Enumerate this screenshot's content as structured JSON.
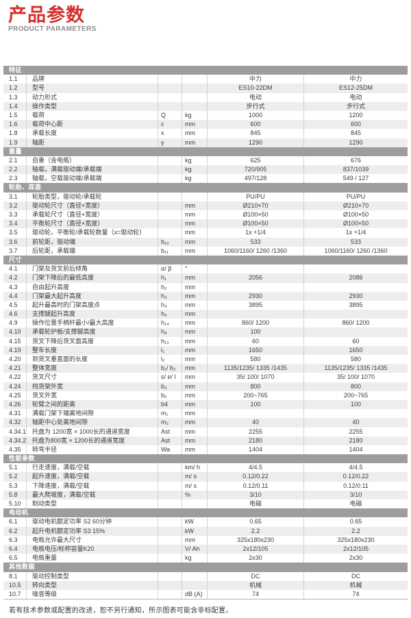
{
  "header": {
    "title_zh": "产品参数",
    "title_en": "PRODUCT PARAMETERS",
    "accent_color": "#d2302c"
  },
  "table": {
    "sections": [
      {
        "title": "特征",
        "rows": [
          {
            "idx": "1.1",
            "name": "品牌",
            "sym": "",
            "unit": "",
            "v1": "中力",
            "v2": "中力"
          },
          {
            "idx": "1.2",
            "name": "型号",
            "sym": "",
            "unit": "",
            "v1": "ES10-22DM",
            "v2": "ES12-25DM"
          },
          {
            "idx": "1.3",
            "name": "动力形式",
            "sym": "",
            "unit": "",
            "v1": "电动",
            "v2": "电动"
          },
          {
            "idx": "1.4",
            "name": "操作类型",
            "sym": "",
            "unit": "",
            "v1": "步行式",
            "v2": "步行式"
          },
          {
            "idx": "1.5",
            "name": "载荷",
            "sym": "Q",
            "unit": "kg",
            "v1": "1000",
            "v2": "1200"
          },
          {
            "idx": "1.6",
            "name": "载荷中心距",
            "sym": "c",
            "unit": "mm",
            "v1": "600",
            "v2": "600"
          },
          {
            "idx": "1.8",
            "name": "承载长度",
            "sym": "x",
            "unit": "mm",
            "v1": "845",
            "v2": "845"
          },
          {
            "idx": "1.9",
            "name": "轴距",
            "sym": "y",
            "unit": "mm",
            "v1": "1290",
            "v2": "1290"
          }
        ]
      },
      {
        "title": "重量",
        "rows": [
          {
            "idx": "2.1",
            "name": "自重（含电瓶）",
            "sym": "",
            "unit": "kg",
            "v1": "625",
            "v2": "676"
          },
          {
            "idx": "2.2",
            "name": "轴载，满载驱动端/承载端",
            "sym": "",
            "unit": "kg",
            "v1": "720/905",
            "v2": "837/1039"
          },
          {
            "idx": "2.3",
            "name": "轴载，空载驱动端/承载端",
            "sym": "",
            "unit": "kg",
            "v1": "497/128",
            "v2": "549 / 127"
          }
        ]
      },
      {
        "title": "轮胎、底盘",
        "rows": [
          {
            "idx": "3.1",
            "name": "轮胎类型，驱动轮/承载轮",
            "sym": "",
            "unit": "",
            "v1": "PU/PU",
            "v2": "PU/PU"
          },
          {
            "idx": "3.2",
            "name": "驱动轮尺寸（直径×宽度）",
            "sym": "",
            "unit": "mm",
            "v1": "Ø210×70",
            "v2": "Ø210×70"
          },
          {
            "idx": "3.3",
            "name": "承载轮尺寸（直径×宽度）",
            "sym": "",
            "unit": "mm",
            "v1": "Ø100×50",
            "v2": "Ø100×50"
          },
          {
            "idx": "3.4",
            "name": "平衡轮尺寸（直径×宽度）",
            "sym": "",
            "unit": "mm",
            "v1": "Ø100×50",
            "v2": "Ø100×50"
          },
          {
            "idx": "3.5",
            "name": "驱动轮，平衡轮/承载轮数量（x=驱动轮）",
            "sym": "",
            "unit": "mm",
            "v1": "1x +1/4",
            "v2": "1x +1/4"
          },
          {
            "idx": "3.6",
            "name": "前轮距，驱动端",
            "sym": "b₁₀",
            "unit": "mm",
            "v1": "533",
            "v2": "533"
          },
          {
            "idx": "3.7",
            "name": "后轮距，承载端",
            "sym": "b₁₁",
            "unit": "mm",
            "v1": "1060/1160/ 1260 /1360",
            "v2": "1060/1160/ 1260 /1360"
          }
        ]
      },
      {
        "title": "尺寸",
        "rows": [
          {
            "idx": "4.1",
            "name": "门架及货叉前后倾角",
            "sym": "α/ β",
            "unit": "°",
            "v1": "",
            "v2": ""
          },
          {
            "idx": "4.2",
            "name": "门架下降后的最低高度",
            "sym": "h₁",
            "unit": "mm",
            "v1": "2056",
            "v2": "2086"
          },
          {
            "idx": "4.3",
            "name": "自由起升高度",
            "sym": "h₂",
            "unit": "mm",
            "v1": "",
            "v2": ""
          },
          {
            "idx": "4.4",
            "name": "门架最大起升高度",
            "sym": "h₃",
            "unit": "mm",
            "v1": "2930",
            "v2": "2930"
          },
          {
            "idx": "4.5",
            "name": "起升最高时的门架高度点",
            "sym": "h₄",
            "unit": "mm",
            "v1": "3895",
            "v2": "3895"
          },
          {
            "idx": "4.6",
            "name": "支撑腿起升高度",
            "sym": "h₅",
            "unit": "mm",
            "v1": "",
            "v2": ""
          },
          {
            "idx": "4.9",
            "name": "操作位置手柄杆最小/最大高度",
            "sym": "h₁₄",
            "unit": "mm",
            "v1": "860/ 1200",
            "v2": "860/ 1200"
          },
          {
            "idx": "4.10",
            "name": "承载轮护板/支撑腿高度",
            "sym": "h₈",
            "unit": "mm",
            "v1": "100",
            "v2": ""
          },
          {
            "idx": "4.15",
            "name": "货叉下降后货叉面高度",
            "sym": "h₁₃",
            "unit": "mm",
            "v1": "60",
            "v2": "60"
          },
          {
            "idx": "4.19",
            "name": "整车长度",
            "sym": "l₁",
            "unit": "mm",
            "v1": "1650",
            "v2": "1650"
          },
          {
            "idx": "4.20",
            "name": "到货叉垂直面的长度",
            "sym": "l₂",
            "unit": "mm",
            "v1": "580",
            "v2": "580"
          },
          {
            "idx": "4.21",
            "name": "整体宽度",
            "sym": "b₁/ b₂",
            "unit": "mm",
            "v1": "1135/1235/ 1335 /1435",
            "v2": "1135/1235/ 1335 /1435"
          },
          {
            "idx": "4.22",
            "name": "货叉尺寸",
            "sym": "s/ e/ l",
            "unit": "mm",
            "v1": "35/ 100/ 1070",
            "v2": "35/ 100/ 1070"
          },
          {
            "idx": "4.24",
            "name": "挡货架外宽",
            "sym": "b₃",
            "unit": "mm",
            "v1": "800",
            "v2": "800"
          },
          {
            "idx": "4.25",
            "name": "货叉外宽",
            "sym": "b₅",
            "unit": "mm",
            "v1": "200~765",
            "v2": "200~765"
          },
          {
            "idx": "4.26",
            "name": "轮臂之间的距离",
            "sym": "b4",
            "unit": "mm",
            "v1": "100",
            "v2": "100"
          },
          {
            "idx": "4.31",
            "name": "满载门架下端离地间隙",
            "sym": "m₁",
            "unit": "mm",
            "v1": "",
            "v2": ""
          },
          {
            "idx": "4.32",
            "name": "轴距中心处离地间隙",
            "sym": "m₂",
            "unit": "mm",
            "v1": "40",
            "v2": "40"
          },
          {
            "idx": "4.34.1",
            "name": "托盘为 1200宽 × 1000长的通道宽度",
            "sym": "Ast",
            "unit": "mm",
            "v1": "2255",
            "v2": "2255"
          },
          {
            "idx": "4.34.2",
            "name": "托盘为800宽 × 1200长的通道宽度",
            "sym": "Ast",
            "unit": "mm",
            "v1": "2180",
            "v2": "2180"
          },
          {
            "idx": "4.35",
            "name": "转弯半径",
            "sym": "Wa",
            "unit": "mm",
            "v1": "1404",
            "v2": "1404"
          }
        ]
      },
      {
        "title": "性能参数",
        "rows": [
          {
            "idx": "5.1",
            "name": "行走速度，满载/空载",
            "sym": "",
            "unit": "km/ h",
            "v1": "4/4.5",
            "v2": "4/4.5"
          },
          {
            "idx": "5.2",
            "name": "起升速度，满载/空载",
            "sym": "",
            "unit": "m/ s",
            "v1": "0.12/0.22",
            "v2": "0.12/0.22"
          },
          {
            "idx": "5.3",
            "name": "下降速度，满载/空载",
            "sym": "",
            "unit": "m/ s",
            "v1": "0.12/0.11",
            "v2": "0.12/0.11"
          },
          {
            "idx": "5.8",
            "name": "最大爬坡度，满载/空载",
            "sym": "",
            "unit": "%",
            "v1": "3/10",
            "v2": "3/10"
          },
          {
            "idx": "5.10",
            "name": "制动类型",
            "sym": "",
            "unit": "",
            "v1": "电磁",
            "v2": "电磁"
          }
        ]
      },
      {
        "title": "电动机",
        "rows": [
          {
            "idx": "6.1",
            "name": "驱动电机额定功率 S2 60分钟",
            "sym": "",
            "unit": "kW",
            "v1": "0.65",
            "v2": "0.65"
          },
          {
            "idx": "6.2",
            "name": "起升电机额定功率 S3 15%",
            "sym": "",
            "unit": "kW",
            "v1": "2.2",
            "v2": "2.2"
          },
          {
            "idx": "6.3",
            "name": "电瓶允许最大尺寸",
            "sym": "",
            "unit": "mm",
            "v1": "325x180x230",
            "v2": "325x180x230"
          },
          {
            "idx": "6.4",
            "name": "电瓶电压/标称容量K20",
            "sym": "",
            "unit": "V/ Ah",
            "v1": "2x12/105",
            "v2": "2x12/105"
          },
          {
            "idx": "6.5",
            "name": "电瓶重量",
            "sym": "",
            "unit": "kg",
            "v1": "2x30",
            "v2": "2x30"
          }
        ]
      },
      {
        "title": "其他数据",
        "rows": [
          {
            "idx": "8.1",
            "name": "驱动控制类型",
            "sym": "",
            "unit": "",
            "v1": "DC",
            "v2": "DC"
          },
          {
            "idx": "10.5",
            "name": "转向类型",
            "sym": "",
            "unit": "",
            "v1": "机械",
            "v2": "机械"
          },
          {
            "idx": "10.7",
            "name": "噪音等级",
            "sym": "",
            "unit": "dB (A)",
            "v1": "74",
            "v2": "74"
          }
        ]
      }
    ]
  },
  "footnote": "若有技术参数或配置的改进，恕不另行通知，所示图表可能含非标配置。"
}
